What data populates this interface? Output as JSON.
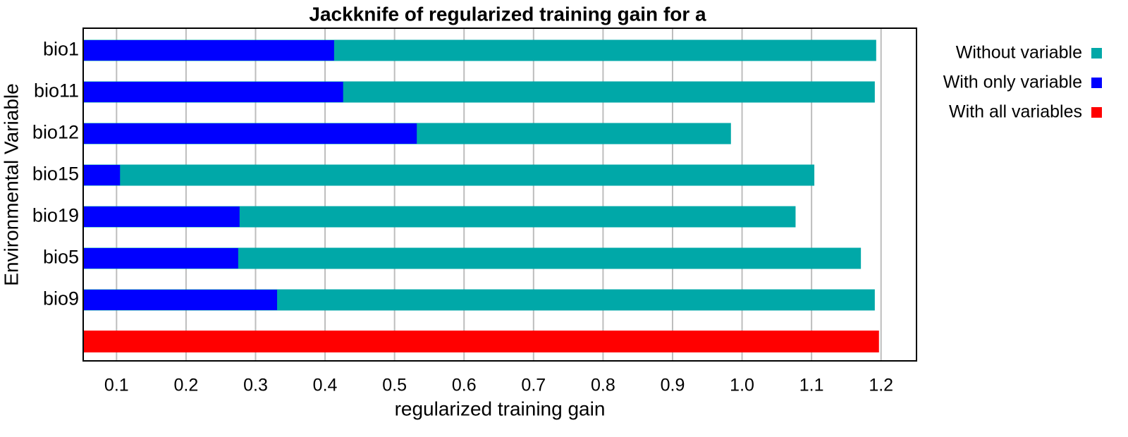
{
  "chart_data": {
    "type": "bar",
    "orientation": "horizontal",
    "title": "Jackknife of regularized training gain for a",
    "x_label": "regularized training gain",
    "y_label": "Environmental Variable",
    "categories": [
      "bio1",
      "bio11",
      "bio12",
      "bio15",
      "bio19",
      "bio5",
      "bio9",
      null
    ],
    "series": [
      {
        "name": "Without variable",
        "color": "#00a8a8",
        "values": [
          1.193,
          1.191,
          0.984,
          1.104,
          1.077,
          1.171,
          1.191,
          null
        ]
      },
      {
        "name": "With only variable",
        "color": "#0000ff",
        "values": [
          0.413,
          0.426,
          0.532,
          0.105,
          0.277,
          0.275,
          0.331,
          null
        ]
      },
      {
        "name": "With all variables",
        "color": "#ff0000",
        "values": [
          null,
          null,
          null,
          null,
          null,
          null,
          null,
          1.197
        ]
      }
    ],
    "xlim": [
      0.052,
      1.251
    ],
    "xticks": [
      0.1,
      0.2,
      0.3,
      0.4,
      0.5,
      0.6,
      0.7,
      0.8,
      0.9,
      {
        "value": 1.0,
        "label": "1.0"
      },
      1.1,
      1.2
    ],
    "grid": true,
    "legend": "right"
  }
}
